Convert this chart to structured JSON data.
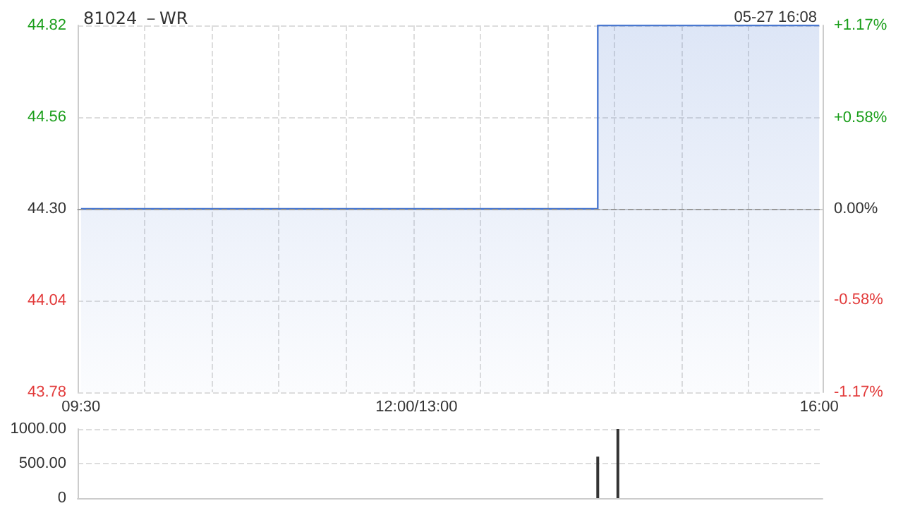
{
  "chart_data": {
    "type": "area",
    "title": "81024 －WR",
    "annotations": [
      "05-27 16:08"
    ],
    "categories": [
      "09:30",
      null,
      null,
      null,
      null,
      null,
      null,
      null,
      null,
      null,
      null,
      null,
      null,
      null,
      null,
      null,
      null,
      null,
      null,
      null,
      null,
      null,
      null,
      null,
      null,
      null,
      null,
      null,
      null,
      null,
      null,
      null,
      null,
      null,
      null,
      null,
      null,
      null,
      null,
      null,
      null,
      null,
      null,
      null,
      null,
      null,
      null,
      null,
      null,
      null,
      "12:00/13:00",
      null,
      null,
      null,
      null,
      null,
      null,
      null,
      null,
      null,
      null,
      null,
      null,
      null,
      null,
      null,
      null,
      null,
      null,
      null,
      null,
      null,
      null,
      null,
      null,
      null,
      null,
      null,
      null,
      null,
      null,
      null,
      null,
      null,
      null,
      null,
      null,
      null,
      null,
      null,
      null,
      null,
      null,
      null,
      null,
      null,
      null,
      null,
      null,
      null,
      null,
      null,
      null,
      null,
      null,
      null,
      null,
      null,
      null,
      null,
      "16:00"
    ],
    "series": [
      {
        "color": "#4a78d0",
        "values": [
          44.3,
          44.3,
          44.3,
          44.3,
          44.3,
          44.3,
          44.3,
          44.3,
          44.3,
          44.3,
          44.3,
          44.3,
          44.3,
          44.3,
          44.3,
          44.3,
          44.3,
          44.3,
          44.3,
          44.3,
          44.3,
          44.3,
          44.3,
          44.3,
          44.3,
          44.3,
          44.3,
          44.3,
          44.3,
          44.3,
          44.3,
          44.3,
          44.3,
          44.3,
          44.3,
          44.3,
          44.3,
          44.3,
          44.3,
          44.3,
          44.3,
          44.3,
          44.3,
          44.3,
          44.3,
          44.3,
          44.3,
          44.3,
          44.3,
          44.3,
          44.3,
          44.3,
          44.3,
          44.3,
          44.3,
          44.3,
          44.3,
          44.3,
          44.3,
          44.3,
          44.3,
          44.3,
          44.3,
          44.3,
          44.3,
          44.3,
          44.3,
          44.3,
          44.3,
          44.3,
          44.3,
          44.3,
          44.3,
          44.3,
          44.3,
          44.3,
          44.3,
          44.82,
          44.82,
          44.82,
          44.82,
          44.82,
          44.82,
          44.82,
          44.82,
          44.82,
          44.82,
          44.82,
          44.82,
          44.82,
          44.82,
          44.82,
          44.82,
          44.82,
          44.82,
          44.82,
          44.82,
          44.82,
          44.82,
          44.82,
          44.82,
          44.82,
          44.82,
          44.82,
          44.82,
          44.82,
          44.82,
          44.82,
          44.82,
          44.82,
          44.82
        ]
      },
      {
        "type": "bar",
        "axis": "y3",
        "color": "#333333",
        "values": [
          null,
          null,
          null,
          null,
          null,
          null,
          null,
          null,
          null,
          null,
          null,
          null,
          null,
          null,
          null,
          null,
          null,
          null,
          null,
          null,
          null,
          null,
          null,
          null,
          null,
          null,
          null,
          null,
          null,
          null,
          null,
          null,
          null,
          null,
          null,
          null,
          null,
          null,
          null,
          null,
          null,
          null,
          null,
          null,
          null,
          null,
          null,
          null,
          null,
          null,
          null,
          null,
          null,
          null,
          null,
          null,
          null,
          null,
          null,
          null,
          null,
          null,
          null,
          null,
          null,
          null,
          null,
          null,
          null,
          null,
          null,
          null,
          null,
          null,
          null,
          null,
          null,
          600,
          null,
          null,
          1000,
          null,
          null,
          null,
          null,
          null,
          null,
          null,
          null,
          null,
          null,
          null,
          null,
          null,
          null,
          null,
          null,
          null,
          null,
          null,
          null,
          null,
          null,
          null,
          null,
          null,
          null,
          null,
          null,
          null,
          null
        ]
      }
    ],
    "ylim": [
      43.78,
      44.82
    ],
    "yticks": [
      43.78,
      44.04,
      {
        "value": 44.3,
        "label": "44.30"
      },
      44.56,
      44.82
    ],
    "y2lim": [
      -1.17,
      1.17
    ],
    "y2ticks": [
      {
        "value": -1.17,
        "label": "-1.17%"
      },
      {
        "value": -0.58,
        "label": "-0.58%"
      },
      {
        "value": 0,
        "label": "0.00%"
      },
      {
        "value": 0.58,
        "label": "+0.58%"
      },
      {
        "value": 1.17,
        "label": "+1.17%"
      }
    ],
    "y3lim": [
      0,
      1000
    ],
    "y3ticks": [
      0,
      {
        "value": 500,
        "label": "500.00"
      },
      {
        "value": 1000,
        "label": "1000.00"
      }
    ],
    "ref_lines": [
      {
        "axis": "y",
        "value": 44.3,
        "color": "#999999",
        "line_style": "dashed"
      }
    ],
    "grid": true,
    "marker": "none",
    "line_style": "solid"
  }
}
